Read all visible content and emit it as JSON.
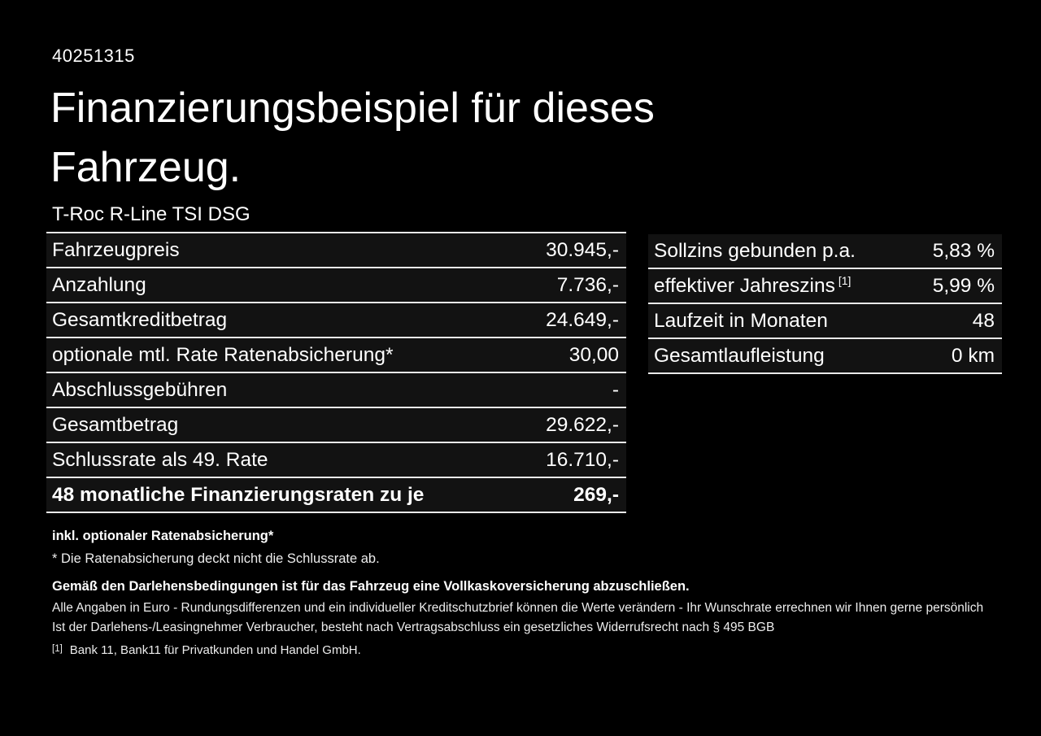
{
  "colors": {
    "background": "#000000",
    "text": "#ffffff",
    "divider": "#e9e9e9",
    "row_background": "#121212"
  },
  "header": {
    "reference_number": "40251315",
    "title_line1": "Finanzierungsbeispiel für dieses",
    "title_line2": "Fahrzeug.",
    "vehicle_model": "T-Roc R-Line TSI DSG"
  },
  "finance_table": {
    "rows": [
      {
        "label": "Fahrzeugpreis",
        "value": "30.945,-"
      },
      {
        "label": "Anzahlung",
        "value": "7.736,-"
      },
      {
        "label": "Gesamtkreditbetrag",
        "value": "24.649,-"
      },
      {
        "label": "optionale mtl. Rate Ratenabsicherung*",
        "value": "30,00"
      },
      {
        "label": "Abschlussgebühren",
        "value": "-"
      },
      {
        "label": "Gesamtbetrag",
        "value": "29.622,-"
      },
      {
        "label": "Schlussrate als 49. Rate",
        "value": "16.710,-"
      },
      {
        "label": "48 monatliche Finanzierungsraten zu je",
        "value": "269,-"
      }
    ]
  },
  "conditions_table": {
    "rows": [
      {
        "label": "Sollzins gebunden p.a.",
        "value": "5,83 %"
      },
      {
        "label": "effektiver Jahreszins",
        "sup": "[1]",
        "value": "5,99 %"
      },
      {
        "label": "Laufzeit in Monaten",
        "value": "48"
      },
      {
        "label": "Gesamtlaufleistung",
        "value": "0 km"
      }
    ]
  },
  "footnotes": {
    "insurance_note_bold": "inkl. optionaler Ratenabsicherung*",
    "insurance_note": "* Die Ratenabsicherung deckt nicht die Schlussrate ab.",
    "obligation_note": "Gemäß den Darlehensbedingungen ist für das Fahrzeug eine Vollkaskoversicherung abzuschließen.",
    "disclaimer_1": "Alle Angaben in Euro - Rundungsdifferenzen und ein individueller Kreditschutzbrief können die Werte verändern - Ihr Wunschrate errechnen wir Ihnen gerne persönlich",
    "disclaimer_2": "Ist der Darlehens-/Leasingnehmer Verbraucher, besteht nach Vertragsabschluss ein gesetzliches Widerrufsrecht nach § 495 BGB",
    "bank_reference_sup": "[1]",
    "bank_reference": "Bank 11, Bank11 für Privatkunden und Handel GmbH."
  }
}
